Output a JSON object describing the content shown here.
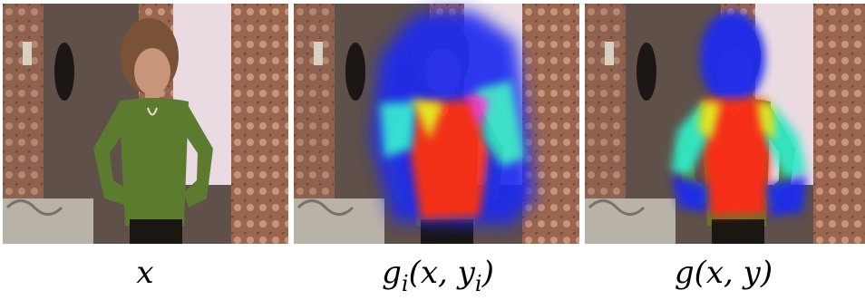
{
  "panels": [
    {
      "caption": [
        {
          "text": "x"
        }
      ]
    },
    {
      "caption": [
        {
          "text": "g"
        },
        {
          "text": "i",
          "sub": true
        },
        {
          "text": "(x, y"
        },
        {
          "text": "i",
          "sub": true
        },
        {
          "text": ")"
        }
      ]
    },
    {
      "caption": [
        {
          "text": "g(x, y)"
        }
      ]
    }
  ]
}
